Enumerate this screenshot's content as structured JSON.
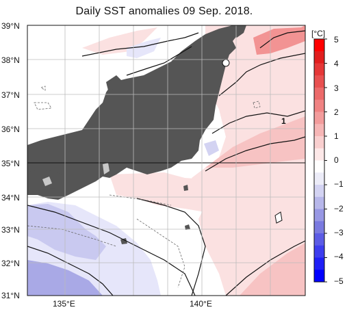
{
  "title": "Daily SST anomalies 09 Sep. 2018.",
  "lat_labels": [
    "39°N",
    "38°N",
    "37°N",
    "36°N",
    "35°N",
    "34°N",
    "33°N",
    "32°N",
    "31°N"
  ],
  "lon_labels": [
    "135°E",
    "140°E"
  ],
  "colorbar": {
    "unit": "[°C]",
    "ticks": [
      "5",
      "4",
      "3",
      "2",
      "1",
      "0",
      "−1",
      "−2",
      "−3",
      "−4",
      "−5"
    ],
    "range": [
      -5,
      5
    ],
    "colors": [
      "#0000ff",
      "#1f1ff6",
      "#3d3dee",
      "#5c5ce5",
      "#7a7ae0",
      "#9898e4",
      "#b7b7ea",
      "#d3d3f2",
      "#ececf8",
      "#ffffff",
      "#fde8e8",
      "#f9cfcf",
      "#f6b6b6",
      "#f39c9c",
      "#f08383",
      "#ec6a6a",
      "#e85050",
      "#e53737",
      "#e11e1e",
      "#ff0000"
    ]
  },
  "contour_label": "1",
  "colors": {
    "land": "#555555",
    "lake_island": "#c8c8c8",
    "warm_light": "#fbe1e1",
    "warm_mid": "#f7c3c3",
    "warm_strong": "#f29393",
    "cool_light": "#e6e6fa",
    "cool_mid": "#c9c9f0",
    "cool_strong": "#a9a9e6"
  }
}
